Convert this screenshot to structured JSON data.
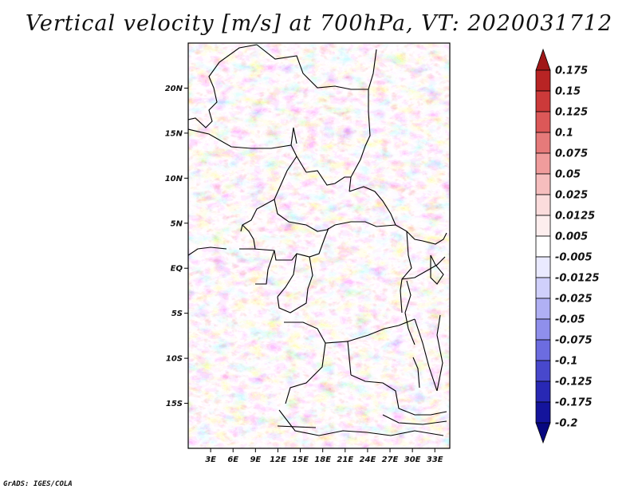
{
  "title": "Vertical velocity [m/s] at 700hPa, VT: 2020031712",
  "credit": "GrADS: IGES/COLA",
  "map": {
    "lon_range": [
      0,
      35
    ],
    "lat_range": [
      -20,
      25
    ],
    "lon_ticks": [
      {
        "value": 3,
        "label": "3E"
      },
      {
        "value": 6,
        "label": "6E"
      },
      {
        "value": 9,
        "label": "9E"
      },
      {
        "value": 12,
        "label": "12E"
      },
      {
        "value": 15,
        "label": "15E"
      },
      {
        "value": 18,
        "label": "18E"
      },
      {
        "value": 21,
        "label": "21E"
      },
      {
        "value": 24,
        "label": "24E"
      },
      {
        "value": 27,
        "label": "27E"
      },
      {
        "value": 30,
        "label": "30E"
      },
      {
        "value": 33,
        "label": "33E"
      }
    ],
    "lat_ticks": [
      {
        "value": 20,
        "label": "20N"
      },
      {
        "value": 15,
        "label": "15N"
      },
      {
        "value": 10,
        "label": "10N"
      },
      {
        "value": 5,
        "label": "5N"
      },
      {
        "value": 0,
        "label": "EQ"
      },
      {
        "value": -5,
        "label": "5S"
      },
      {
        "value": -10,
        "label": "10S"
      },
      {
        "value": -15,
        "label": "15S"
      }
    ]
  },
  "colorbar": {
    "labels": [
      "0.175",
      "0.15",
      "0.125",
      "0.1",
      "0.075",
      "0.05",
      "0.025",
      "0.0125",
      "0.005",
      "-0.005",
      "-0.0125",
      "-0.025",
      "-0.05",
      "-0.075",
      "-0.1",
      "-0.125",
      "-0.175",
      "-0.2"
    ],
    "colors": [
      "#a01818",
      "#b82424",
      "#cc3a3a",
      "#dc5858",
      "#e67a7a",
      "#f09c9c",
      "#f6bebe",
      "#fbdcdc",
      "#fdeeee",
      "#ffffff",
      "#eaeaff",
      "#d0d0fb",
      "#b0b0f4",
      "#8f8fec",
      "#6c6ce0",
      "#4848cc",
      "#2828b4",
      "#14149c",
      "#080880"
    ]
  }
}
